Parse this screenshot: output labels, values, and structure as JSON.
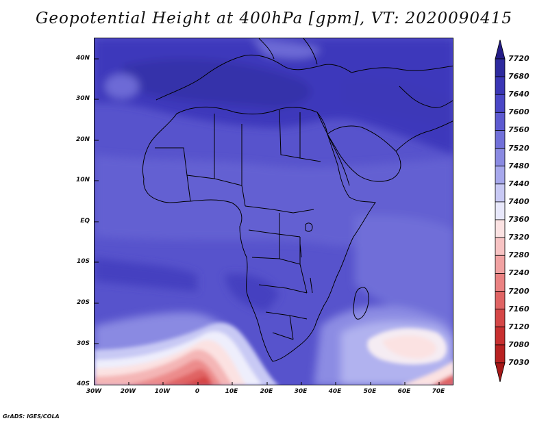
{
  "title": "Geopotential Height at 400hPa [gpm], VT: 2020090415",
  "credit": "GrADS: IGES/COLA",
  "map": {
    "lat_labels": [
      "40N",
      "30N",
      "20N",
      "10N",
      "EQ",
      "10S",
      "20S",
      "30S",
      "40S"
    ],
    "lon_labels": [
      "30W",
      "20W",
      "10W",
      "0",
      "10E",
      "20E",
      "30E",
      "40E",
      "50E",
      "60E",
      "70E"
    ]
  },
  "colorbar": {
    "levels": [
      "7720",
      "7680",
      "7640",
      "7600",
      "7560",
      "7520",
      "7480",
      "7440",
      "7400",
      "7360",
      "7320",
      "7280",
      "7240",
      "7200",
      "7160",
      "7120",
      "7080",
      "7030"
    ],
    "colors": [
      "#241c87",
      "#2d2a9e",
      "#3a36b5",
      "#4a47c6",
      "#5d5ad0",
      "#7170d9",
      "#8a8ae2",
      "#a7a8ec",
      "#c8c9f4",
      "#e8e8fb",
      "#fbe2e2",
      "#f7c3c3",
      "#f1a2a2",
      "#ea8282",
      "#e06464",
      "#d54747",
      "#c83030",
      "#b82222",
      "#a61818"
    ]
  }
}
